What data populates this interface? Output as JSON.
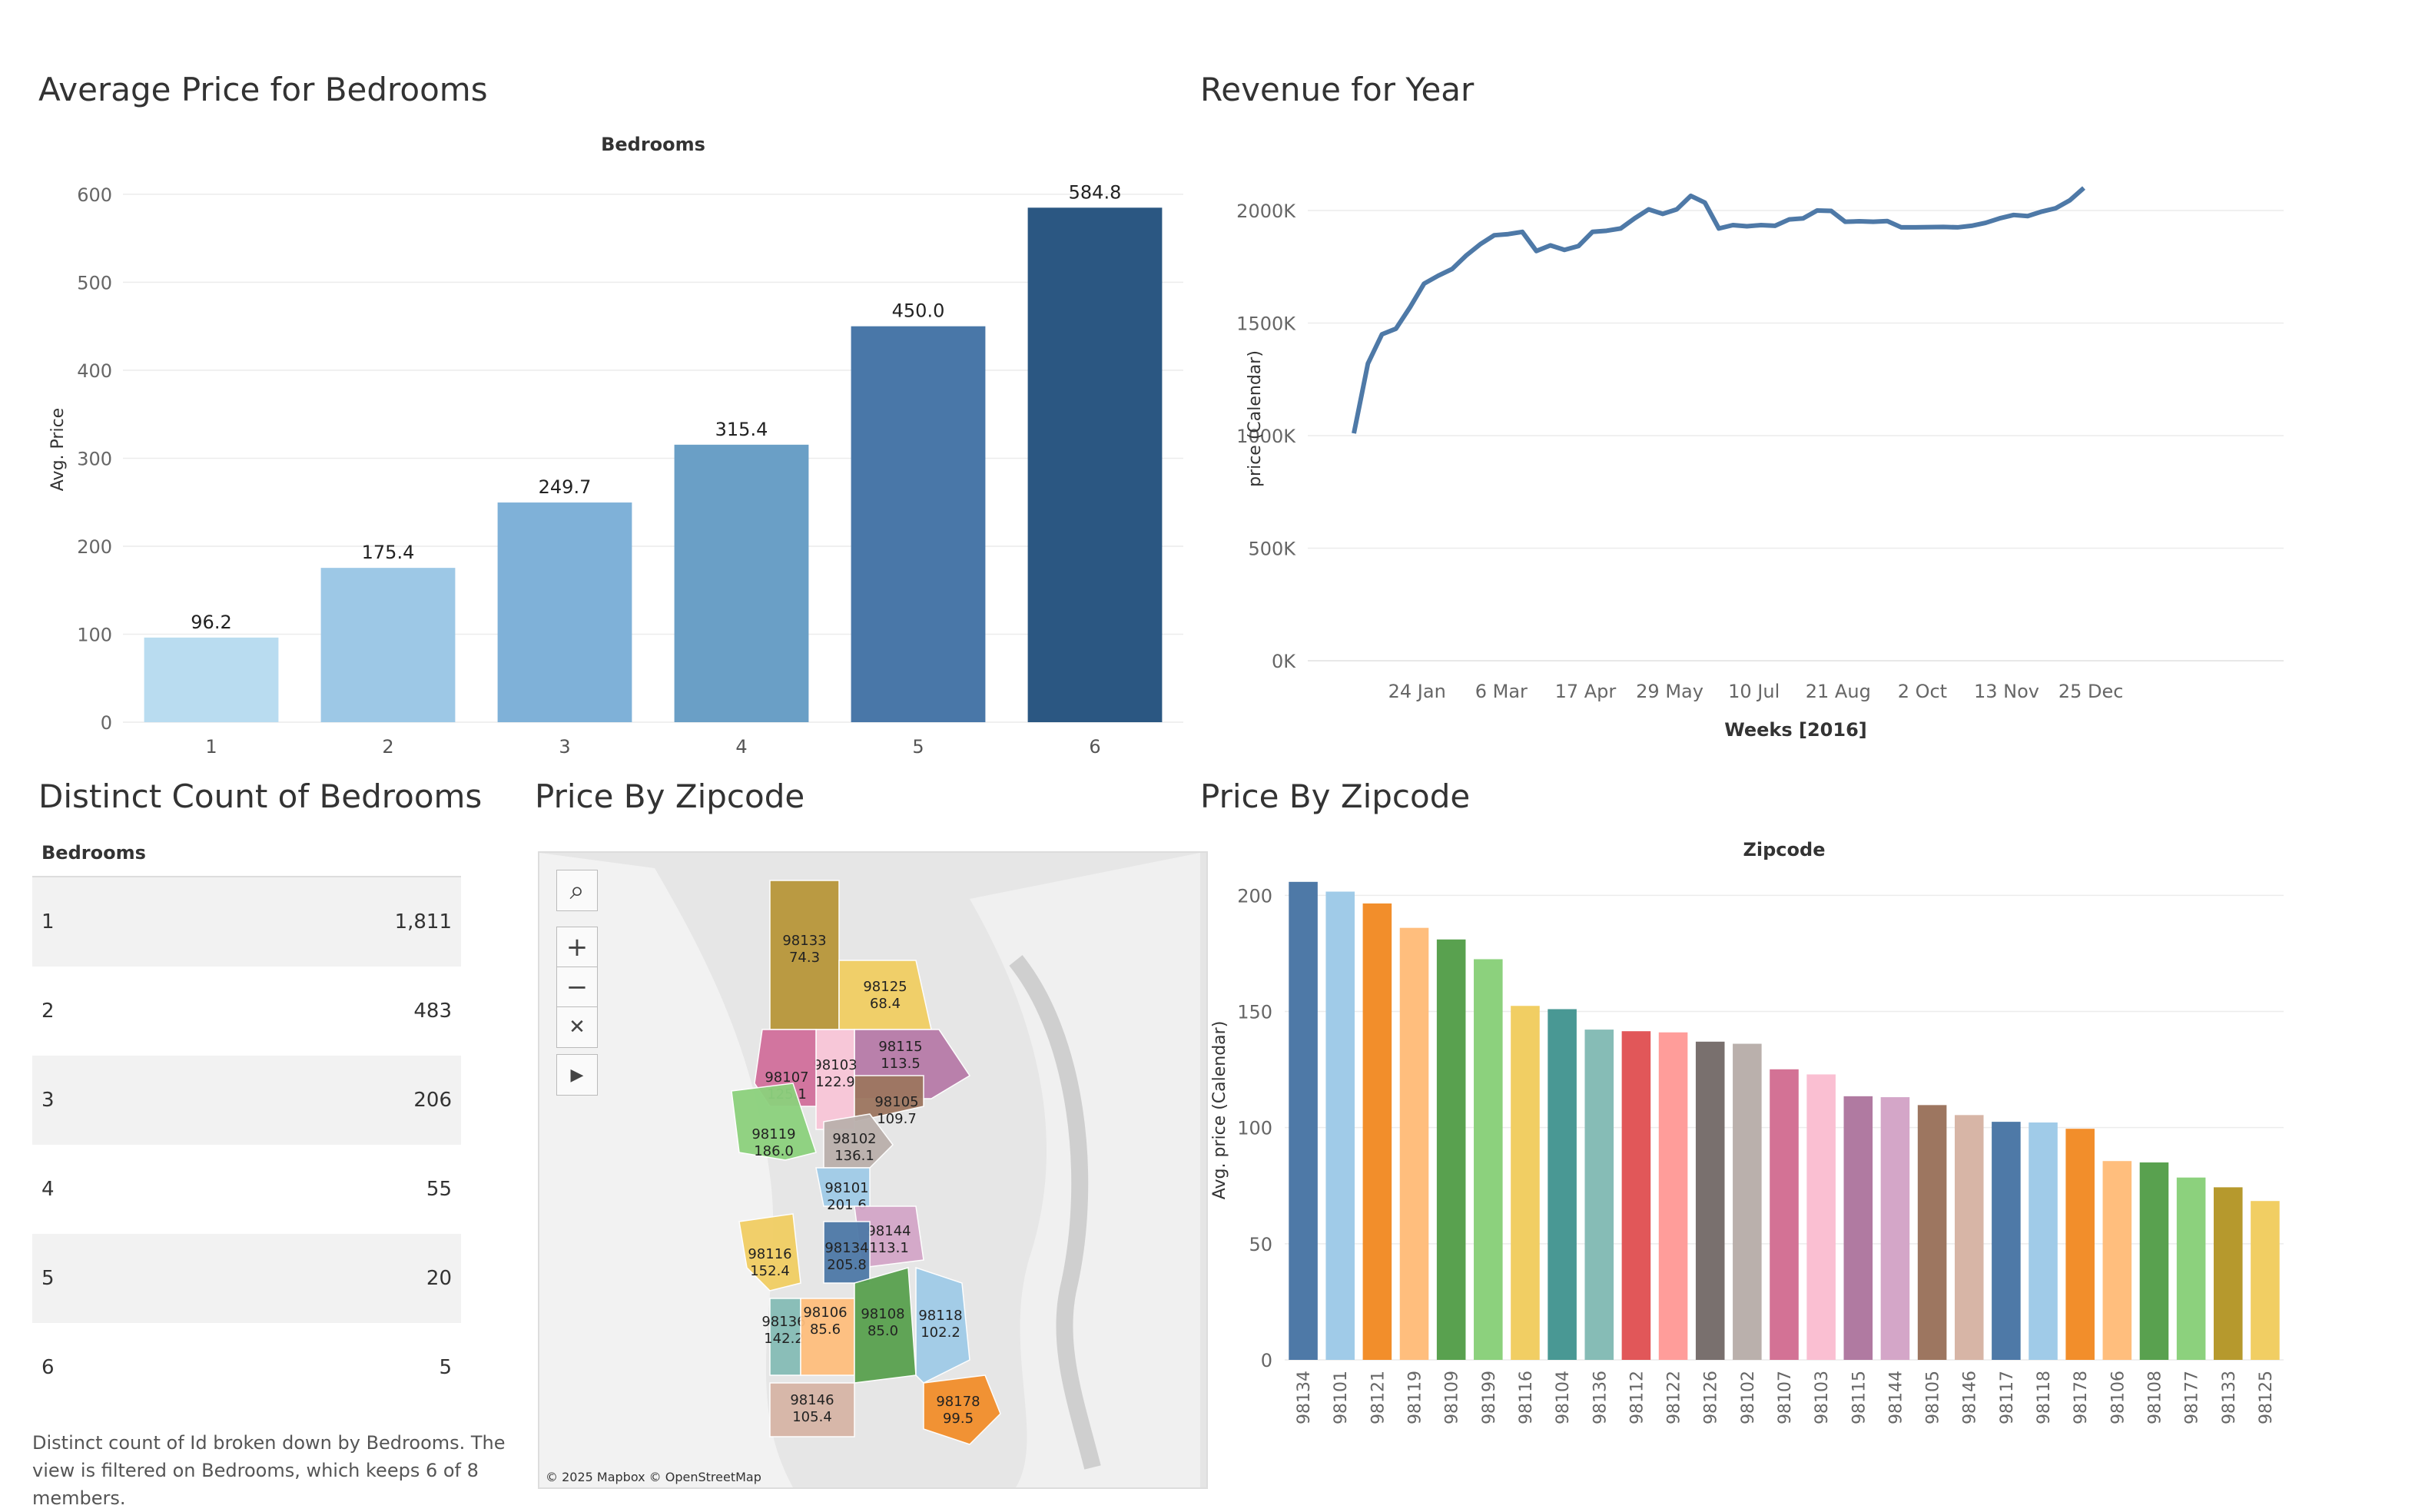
{
  "bedroom_price": {
    "title": "Average Price for Bedrooms",
    "chart_data": {
      "type": "bar",
      "title": "Average Price for Bedrooms",
      "xlabel": "Bedrooms",
      "ylabel": "Avg. Price",
      "categories": [
        "1",
        "2",
        "3",
        "4",
        "5",
        "6"
      ],
      "values": [
        96.2,
        175.4,
        249.7,
        315.4,
        450.0,
        584.8
      ],
      "value_labels": [
        "96.2",
        "175.4",
        "249.7",
        "315.4",
        "450.0",
        "584.8"
      ],
      "ylim": [
        0,
        620
      ],
      "yticks": [
        0,
        100,
        200,
        300,
        400,
        500,
        600
      ],
      "colors": [
        "#b9dcf0",
        "#9dc8e6",
        "#7fb1d8",
        "#6a9fc6",
        "#4977a8",
        "#2b5782"
      ]
    }
  },
  "revenue": {
    "title": "Revenue for Year",
    "chart_data": {
      "type": "line",
      "title": "Revenue for Year",
      "xlabel": "Weeks [2016]",
      "ylabel": "price (Calendar)",
      "x_tick_labels": [
        "24 Jan",
        "6 Mar",
        "17 Apr",
        "29 May",
        "10 Jul",
        "21 Aug",
        "2 Oct",
        "13 Nov",
        "25 Dec"
      ],
      "y_tick_labels": [
        "0K",
        "500K",
        "1000K",
        "1500K",
        "2000K"
      ],
      "ylim": [
        0,
        2150000
      ],
      "x": [
        1,
        2,
        3,
        4,
        5,
        6,
        7,
        8,
        9,
        10,
        11,
        12,
        13,
        14,
        15,
        16,
        17,
        18,
        19,
        20,
        21,
        22,
        23,
        24,
        25,
        26,
        27,
        28,
        29,
        30,
        31,
        32,
        33,
        34,
        35,
        36,
        37,
        38,
        39,
        40,
        41,
        42,
        43,
        44,
        45,
        46,
        47,
        48,
        49,
        50,
        51,
        52,
        53
      ],
      "values": [
        1010000,
        1320000,
        1450000,
        1475000,
        1570000,
        1675000,
        1710000,
        1740000,
        1800000,
        1850000,
        1890000,
        1895000,
        1905000,
        1820000,
        1845000,
        1825000,
        1842000,
        1905000,
        1910000,
        1920000,
        1965000,
        2005000,
        1985000,
        2005000,
        2065000,
        2035000,
        1920000,
        1935000,
        1930000,
        1935000,
        1932000,
        1960000,
        1965000,
        2000000,
        1998000,
        1950000,
        1952000,
        1950000,
        1953000,
        1925000,
        1925000,
        1926000,
        1927000,
        1925000,
        1932000,
        1945000,
        1965000,
        1980000,
        1975000,
        1995000,
        2010000,
        2045000,
        2100000
      ],
      "color": "#4e79a7"
    }
  },
  "bedroom_count": {
    "title": "Distinct Count of Bedrooms",
    "header": "Bedrooms",
    "rows": [
      {
        "label": "1",
        "value": "1,811"
      },
      {
        "label": "2",
        "value": "483"
      },
      {
        "label": "3",
        "value": "206"
      },
      {
        "label": "4",
        "value": "55"
      },
      {
        "label": "5",
        "value": "20"
      },
      {
        "label": "6",
        "value": "5"
      }
    ],
    "footnote": "Distinct count of Id broken down by Bedrooms. The view is filtered on Bedrooms, which keeps 6 of 8 members."
  },
  "zip_map": {
    "title": "Price By Zipcode",
    "attribution": "© 2025 Mapbox © OpenStreetMap",
    "controls": [
      "search-icon",
      "zoom-in-icon",
      "zoom-out-icon",
      "pin-clear-icon",
      "play-icon"
    ],
    "regions": [
      {
        "zip": "98133",
        "price": "74.3",
        "color": "#b8963a"
      },
      {
        "zip": "98125",
        "price": "68.4",
        "color": "#f1ce63"
      },
      {
        "zip": "98115",
        "price": "113.5",
        "color": "#b77ba8"
      },
      {
        "zip": "98103",
        "price": "122.9",
        "color": "#f8c6d8"
      },
      {
        "zip": "98107",
        "price": "125.1",
        "color": "#d16f9c"
      },
      {
        "zip": "98105",
        "price": "109.7",
        "color": "#9d7660"
      },
      {
        "zip": "98119",
        "price": "186.0",
        "color": "#8cd17d"
      },
      {
        "zip": "98102",
        "price": "136.1",
        "color": "#bab0ac"
      },
      {
        "zip": "98101",
        "price": "201.6",
        "color": "#a0cbe8"
      },
      {
        "zip": "98144",
        "price": "113.1",
        "color": "#d4a6c8"
      },
      {
        "zip": "98116",
        "price": "152.4",
        "color": "#f1ce63"
      },
      {
        "zip": "98134",
        "price": "205.8",
        "color": "#4e79a7"
      },
      {
        "zip": "98136",
        "price": "142.2",
        "color": "#86bcb6"
      },
      {
        "zip": "98106",
        "price": "85.6",
        "color": "#ffbe7d"
      },
      {
        "zip": "98108",
        "price": "85.0",
        "color": "#59a14f"
      },
      {
        "zip": "98118",
        "price": "102.2",
        "color": "#a0cbe8"
      },
      {
        "zip": "98146",
        "price": "105.4",
        "color": "#d7b5a6"
      },
      {
        "zip": "98178",
        "price": "99.5",
        "color": "#f28e2b"
      }
    ]
  },
  "zip_price": {
    "title": "Price By Zipcode",
    "chart_data": {
      "type": "bar",
      "title": "Price By Zipcode",
      "xlabel": "Zipcode",
      "ylabel": "Avg. price (Calendar)",
      "categories": [
        "98134",
        "98101",
        "98121",
        "98119",
        "98109",
        "98199",
        "98116",
        "98104",
        "98136",
        "98112",
        "98122",
        "98126",
        "98102",
        "98107",
        "98103",
        "98115",
        "98144",
        "98105",
        "98146",
        "98117",
        "98118",
        "98178",
        "98106",
        "98108",
        "98177",
        "98133",
        "98125"
      ],
      "values": [
        205.8,
        201.6,
        196.5,
        186.0,
        181.0,
        172.5,
        152.4,
        151.0,
        142.2,
        141.5,
        141.0,
        137.0,
        136.1,
        125.1,
        122.9,
        113.5,
        113.1,
        109.7,
        105.4,
        102.5,
        102.2,
        99.5,
        85.6,
        85.0,
        78.5,
        74.3,
        68.4
      ],
      "ylim": [
        0,
        215
      ],
      "yticks": [
        0,
        50,
        100,
        150,
        200
      ],
      "colors": [
        "#4e79a7",
        "#a0cbe8",
        "#f28e2b",
        "#ffbe7d",
        "#59a14f",
        "#8cd17d",
        "#f1ce63",
        "#499894",
        "#86bcb6",
        "#e15759",
        "#ff9d9a",
        "#79706e",
        "#bab0ac",
        "#d37295",
        "#fabfd2",
        "#b07aa1",
        "#d4a6c8",
        "#9d7660",
        "#d7b5a6",
        "#4e79a7",
        "#a0cbe8",
        "#f28e2b",
        "#ffbe7d",
        "#59a14f",
        "#8cd17d",
        "#b6992d",
        "#f1ce63"
      ]
    }
  }
}
